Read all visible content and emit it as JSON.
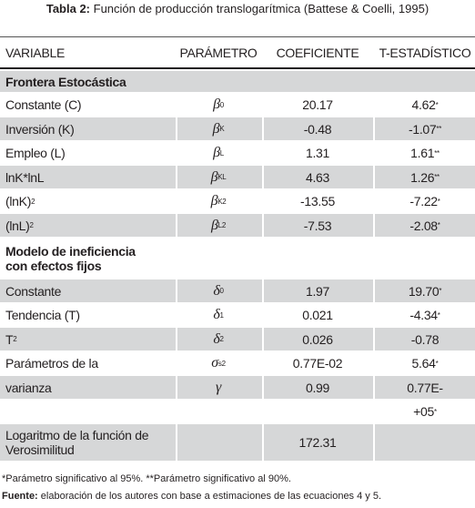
{
  "title": {
    "label": "Tabla 2:",
    "text": " Función de producción translogarítmica (Battese & Coelli, 1995)"
  },
  "header": [
    "VARIABLE",
    "PARÁMETRO",
    "COEFICIENTE",
    "T-ESTADÍSTICO"
  ],
  "rows": [
    {
      "section": "Frontera Estocástica"
    },
    {
      "variable": "Constante (C)",
      "param": {
        "symbol": "β",
        "sub": "0"
      },
      "coef": "20.17",
      "t": "4.62",
      "t_mark": "*"
    },
    {
      "variable": "Inversión (K)",
      "param": {
        "symbol": "β",
        "sub": "K"
      },
      "coef": "-0.48",
      "t": "-1.07",
      "t_mark": "**"
    },
    {
      "variable": "Empleo (L)",
      "param": {
        "symbol": "β",
        "sub": "L"
      },
      "coef": "1.31",
      "t": "1.61",
      "t_mark": "**"
    },
    {
      "variable": "lnK*lnL",
      "param": {
        "symbol": "β",
        "sub": "KL"
      },
      "coef": "4.63",
      "t": "1.26",
      "t_mark": "**"
    },
    {
      "variable": "(lnK)",
      "variable_sup": "2",
      "param": {
        "symbol": "β",
        "sub": "K",
        "sup": "2"
      },
      "coef": "-13.55",
      "t": "-7.22",
      "t_mark": "*"
    },
    {
      "variable": "(lnL)",
      "variable_sup": "2",
      "param": {
        "symbol": "β",
        "sub": "L",
        "sup": "2"
      },
      "coef": "-7.53",
      "t": "-2.08",
      "t_mark": "*"
    },
    {
      "section": "Modelo de ineficiencia con efectos fijos"
    },
    {
      "variable": "Constante",
      "param": {
        "symbol": "δ",
        "sub": "0"
      },
      "coef": "1.97",
      "t": "19.70",
      "t_mark": "*"
    },
    {
      "variable": "Tendencia (T)",
      "param": {
        "symbol": "δ",
        "sub": "1"
      },
      "coef": "0.021",
      "t": "-4.34",
      "t_mark": "*"
    },
    {
      "variable": "T",
      "variable_sup": "2",
      "param": {
        "symbol": "δ",
        "sub": "2"
      },
      "coef": "0.026",
      "t": "-0.78"
    },
    {
      "variable": "Parámetros de la",
      "param": {
        "symbol": "σ",
        "sub": "s",
        "sup": "2"
      },
      "coef": "0.77E-02",
      "t": "5.64",
      "t_mark": "*"
    },
    {
      "variable": "varianza",
      "param": {
        "symbol": "γ"
      },
      "coef": "0.99",
      "t": "0.77E-"
    },
    {
      "t": "+05",
      "t_mark": "*"
    },
    {
      "variable": "Logaritmo de la función de Verosimilitud",
      "coef": "172.31"
    }
  ],
  "footnotes": {
    "significance": "*Parámetro significativo al 95%. **Parámetro significativo al 90%.",
    "source_label": "Fuente:",
    "source": " elaboración de los autores con base a estimaciones de las ecuaciones 4 y 5."
  }
}
